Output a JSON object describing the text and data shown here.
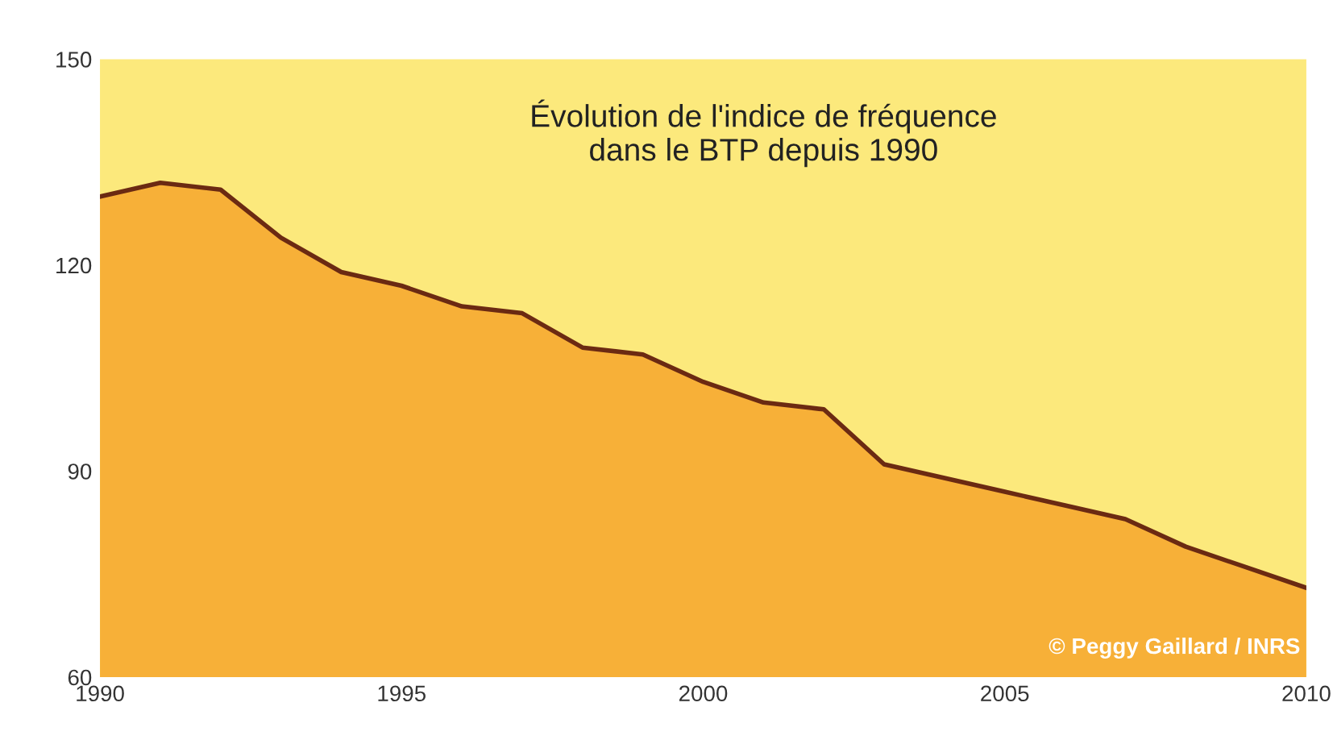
{
  "chart_data": {
    "type": "area",
    "title": "Évolution de l'indice de fréquence\ndans le BTP depuis 1990",
    "x": [
      1990,
      1991,
      1992,
      1993,
      1994,
      1995,
      1996,
      1997,
      1998,
      1999,
      2000,
      2001,
      2002,
      2003,
      2004,
      2005,
      2006,
      2007,
      2008,
      2009,
      2010
    ],
    "series": [
      {
        "color": "#f7b038",
        "values": [
          130,
          132,
          131,
          124,
          119,
          117,
          114,
          113,
          108,
          107,
          103,
          100,
          99,
          91,
          89,
          87,
          85,
          83,
          79,
          76,
          73
        ]
      }
    ],
    "xlim": [
      1990,
      2010
    ],
    "xticks": [
      1990,
      1995,
      2000,
      2005,
      2010
    ],
    "ylim": [
      60,
      150
    ],
    "yticks": [
      60,
      90,
      120,
      150
    ],
    "grid": false,
    "legend": false,
    "annotations": [
      "© Peggy Gaillard / INRS"
    ]
  }
}
